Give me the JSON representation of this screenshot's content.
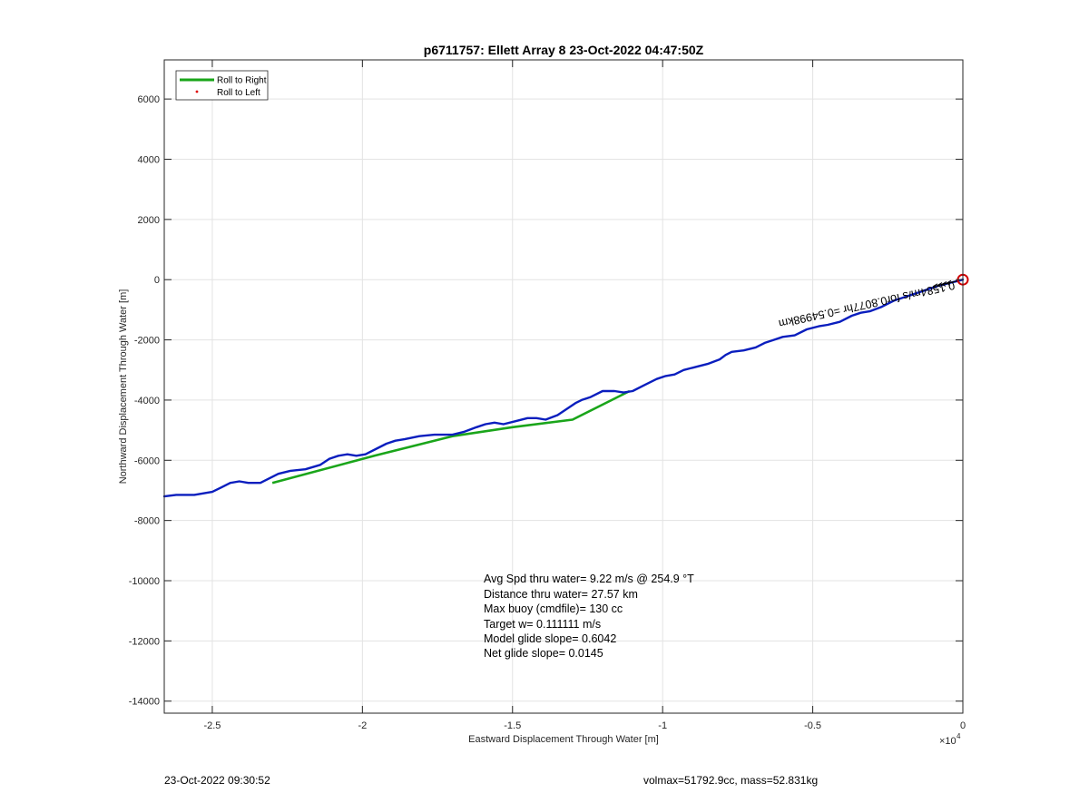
{
  "chart_data": {
    "type": "line",
    "title": "p6711757: Ellett Array 8 23-Oct-2022 04:47:50Z",
    "xlabel": "Eastward Displacement Through Water [m]",
    "ylabel": "Northward Displacement Through Water [m]",
    "x_exponent_label": "×10",
    "x_exponent_power": "4",
    "x_scale": 10000,
    "xlim": [
      -26600,
      0
    ],
    "ylim": [
      -14400,
      7300
    ],
    "x_ticks": [
      -25000,
      -20000,
      -15000,
      -10000,
      -5000,
      0
    ],
    "x_tick_labels": [
      "-2.5",
      "-2",
      "-1.5",
      "-1",
      "-0.5",
      "0"
    ],
    "y_ticks": [
      6000,
      4000,
      2000,
      0,
      -2000,
      -4000,
      -6000,
      -8000,
      -10000,
      -12000,
      -14000
    ],
    "y_tick_labels": [
      "6000",
      "4000",
      "2000",
      "0",
      "-2000",
      "-4000",
      "-6000",
      "-8000",
      "-10000",
      "-12000",
      "-14000"
    ],
    "grid": true,
    "legend_position": "top-left",
    "series": [
      {
        "name": "Roll to Right",
        "color": "#1aa51a",
        "style": "thick-line",
        "x": [
          -23000,
          -19600,
          -17000,
          -15000,
          -13000,
          -11100
        ],
        "y": [
          -6750,
          -5850,
          -5200,
          -4900,
          -4650,
          -3700
        ]
      },
      {
        "name": "Roll to Left",
        "color": "#e00000",
        "style": "dot",
        "x": [],
        "y": []
      }
    ],
    "track": {
      "color": "#0a1ebe",
      "x": [
        -26600,
        -26200,
        -25600,
        -25000,
        -24700,
        -24400,
        -24100,
        -23800,
        -23400,
        -23100,
        -22800,
        -22400,
        -21900,
        -21400,
        -21100,
        -20800,
        -20500,
        -20200,
        -19900,
        -19500,
        -19200,
        -18900,
        -18600,
        -18100,
        -17600,
        -17000,
        -16600,
        -16200,
        -15900,
        -15600,
        -15300,
        -14900,
        -14500,
        -14200,
        -13900,
        -13500,
        -13200,
        -12900,
        -12700,
        -12400,
        -12000,
        -11600,
        -11300,
        -11000,
        -10600,
        -10200,
        -9900,
        -9600,
        -9300,
        -8900,
        -8500,
        -8100,
        -7900,
        -7700,
        -7300,
        -6900,
        -6600,
        -6300,
        -6000,
        -5600,
        -5200,
        -4800,
        -4500,
        -4100,
        -3700,
        -3400,
        -3100,
        -2700,
        -2300,
        -2000,
        -1700,
        -1400,
        -1100,
        -800,
        -600,
        -400,
        -200,
        0
      ],
      "y": [
        -7200,
        -7150,
        -7150,
        -7050,
        -6900,
        -6750,
        -6700,
        -6750,
        -6750,
        -6600,
        -6450,
        -6350,
        -6300,
        -6150,
        -5950,
        -5850,
        -5800,
        -5850,
        -5800,
        -5600,
        -5450,
        -5350,
        -5300,
        -5200,
        -5150,
        -5150,
        -5050,
        -4900,
        -4800,
        -4750,
        -4800,
        -4700,
        -4600,
        -4600,
        -4650,
        -4500,
        -4300,
        -4100,
        -4000,
        -3900,
        -3700,
        -3700,
        -3750,
        -3700,
        -3500,
        -3300,
        -3200,
        -3150,
        -3000,
        -2900,
        -2800,
        -2650,
        -2500,
        -2400,
        -2350,
        -2250,
        -2100,
        -2000,
        -1900,
        -1850,
        -1650,
        -1550,
        -1500,
        -1400,
        -1200,
        -1100,
        -1050,
        -900,
        -700,
        -600,
        -500,
        -400,
        -300,
        -200,
        -150,
        -100,
        -50,
        0
      ]
    },
    "surface_marker": {
      "x": 0,
      "y": 0,
      "color": "#d00000"
    },
    "current_arrow_label": "0.1584m/s for0.8077hr =0.54998km",
    "annotations": [
      "Avg Spd thru water=  9.22 m/s @ 254.9 °T",
      "Distance thru water= 27.57 km",
      "Max buoy (cmdfile)= 130 cc",
      "Target w= 0.111111 m/s",
      "Model glide slope= 0.6042",
      "Net glide slope= 0.0145"
    ]
  },
  "footer": {
    "left": "23-Oct-2022 09:30:52",
    "right": "volmax=51792.9cc, mass=52.831kg"
  }
}
